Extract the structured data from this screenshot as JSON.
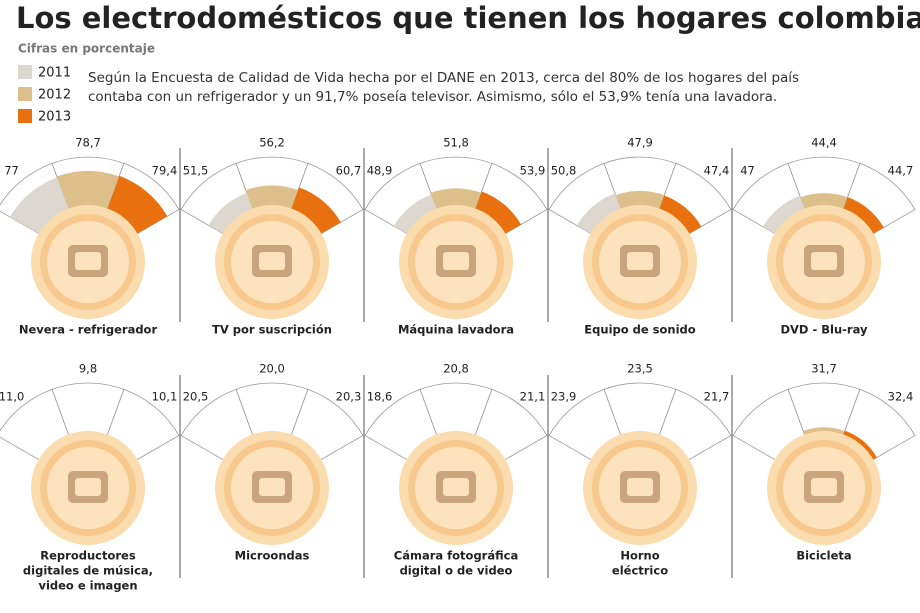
{
  "title": "Los electrodomésticos que tienen los hogares colombianos",
  "subtitle": "Cifras en porcentaje",
  "description": [
    "Según la Encuesta de Calidad de Vida hecha por el DANE en 2013, cerca del 80% de los hogares del país",
    "contaba con un refrigerador y un 91,7% poseía televisor. Asimismo, sólo el 53,9% tenía una lavadora."
  ],
  "legend": [
    {
      "name": "2011",
      "color": "#dcd8cf"
    },
    {
      "name": "2012",
      "color": "#dcbf8a"
    },
    {
      "name": "2013",
      "color": "#e8700f"
    }
  ],
  "chart_data": [
    {
      "type": "polar-area",
      "title": [
        "Nevera - refrigerador"
      ],
      "values": [
        77,
        78.7,
        79.4
      ],
      "value_labels": [
        "77",
        "78,7",
        "79,4"
      ],
      "ylim": [
        0,
        100
      ]
    },
    {
      "type": "polar-area",
      "title": [
        "TV por suscripción"
      ],
      "values": [
        51.5,
        56.2,
        60.7
      ],
      "value_labels": [
        "51,5",
        "56,2",
        "60,7"
      ],
      "ylim": [
        0,
        100
      ]
    },
    {
      "type": "polar-area",
      "title": [
        "Máquina lavadora"
      ],
      "values": [
        48.9,
        51.8,
        53.9
      ],
      "value_labels": [
        "48,9",
        "51,8",
        "53,9"
      ],
      "ylim": [
        0,
        100
      ]
    },
    {
      "type": "polar-area",
      "title": [
        "Equipo de sonido"
      ],
      "values": [
        50.8,
        47.9,
        47.4
      ],
      "value_labels": [
        "50,8",
        "47,9",
        "47,4"
      ],
      "ylim": [
        0,
        100
      ]
    },
    {
      "type": "polar-area",
      "title": [
        "DVD - Blu-ray"
      ],
      "values": [
        47,
        44.4,
        44.7
      ],
      "value_labels": [
        "47",
        "44,4",
        "44,7"
      ],
      "ylim": [
        0,
        100
      ]
    },
    {
      "type": "polar-area",
      "title": [
        "Reproductores",
        "digitales de música,",
        "video e imagen"
      ],
      "values": [
        11.0,
        9.8,
        10.1
      ],
      "value_labels": [
        "11,0",
        "9,8",
        "10,1"
      ],
      "ylim": [
        0,
        100
      ]
    },
    {
      "type": "polar-area",
      "title": [
        "Microondas"
      ],
      "values": [
        20.5,
        20.0,
        20.3
      ],
      "value_labels": [
        "20,5",
        "20,0",
        "20,3"
      ],
      "ylim": [
        0,
        100
      ]
    },
    {
      "type": "polar-area",
      "title": [
        "Cámara fotográfica",
        "digital o de video"
      ],
      "values": [
        18.6,
        20.8,
        21.1
      ],
      "value_labels": [
        "18,6",
        "20,8",
        "21,1"
      ],
      "ylim": [
        0,
        100
      ]
    },
    {
      "type": "polar-area",
      "title": [
        "Horno",
        "eléctrico"
      ],
      "values": [
        23.9,
        23.5,
        21.7
      ],
      "value_labels": [
        "23,9",
        "23,5",
        "21,7"
      ],
      "ylim": [
        0,
        100
      ]
    },
    {
      "type": "polar-area",
      "title": [
        "Bicicleta"
      ],
      "values": [
        null,
        31.7,
        32.4
      ],
      "value_labels": [
        null,
        "31,7",
        "32,4"
      ],
      "ylim": [
        0,
        100
      ]
    }
  ]
}
